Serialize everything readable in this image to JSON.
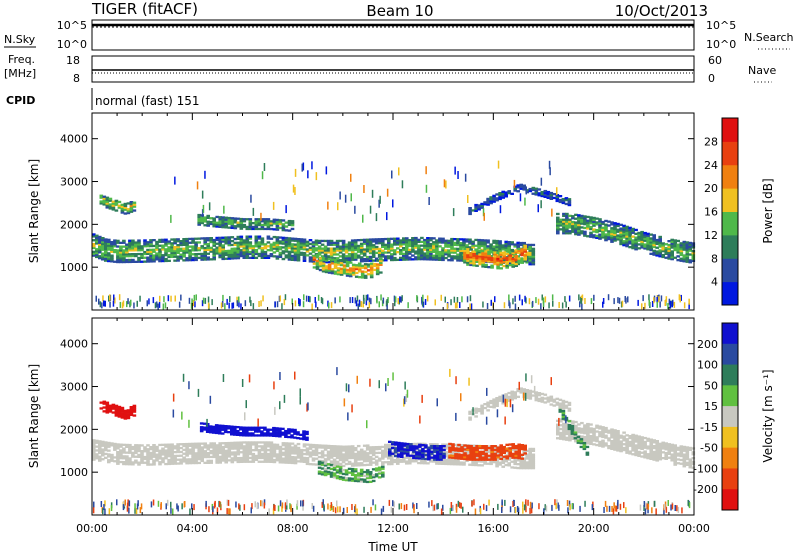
{
  "header": {
    "station": "TIGER (fitACF)",
    "beam": "Beam 10",
    "date": "10/Oct/2013"
  },
  "side_labels": {
    "nsky": "N.Sky",
    "nsearch": "N.Search",
    "freq": "Freq.",
    "freq_unit": "[MHz]",
    "nave": "Nave",
    "cpid": "CPID"
  },
  "cpid_text": "normal (fast) 151",
  "nsky_ticks": [
    "10^5",
    "10^0"
  ],
  "nsearch_ticks": [
    "10^5",
    "10^0"
  ],
  "freq_ticks": [
    "18",
    "8"
  ],
  "nave_ticks": [
    "60",
    "0"
  ],
  "colors": {
    "power": [
      "#0018e0",
      "#2a4aa0",
      "#2e7d5a",
      "#4fb84a",
      "#f0c020",
      "#f08010",
      "#e84010",
      "#e01010"
    ],
    "velocity": [
      "#1010d0",
      "#2a4aa0",
      "#2e7d5a",
      "#60c040",
      "#c8c8c0",
      "#f0c020",
      "#f08010",
      "#e84010",
      "#e01010"
    ]
  },
  "chart_data": [
    {
      "type": "heatmap",
      "name": "power",
      "ylabel": "Slant Range [km]",
      "yticks": [
        "1000",
        "2000",
        "3000",
        "4000"
      ],
      "ylim": [
        0,
        4600
      ],
      "xlim": [
        0,
        24
      ],
      "xtick_labels": [],
      "colorbar_label": "Power [dB]",
      "colorbar_ticks": [
        "4",
        "8",
        "12",
        "16",
        "20",
        "24",
        "28"
      ],
      "colorbar_range": [
        0,
        32
      ],
      "bands": [
        {
          "t": [
            0,
            0.5,
            1,
            2,
            3,
            4,
            5,
            6,
            7,
            8,
            9,
            10,
            11,
            12,
            13,
            14,
            15,
            16,
            17,
            17.6
          ],
          "r": [
            1500,
            1380,
            1350,
            1360,
            1380,
            1400,
            1420,
            1450,
            1450,
            1400,
            1350,
            1350,
            1380,
            1400,
            1420,
            1400,
            1380,
            1350,
            1300,
            1300
          ],
          "w": 500,
          "p": 15
        },
        {
          "t": [
            18.5,
            19,
            20,
            21,
            22,
            23,
            24
          ],
          "r": [
            2000,
            2000,
            1900,
            1750,
            1550,
            1400,
            1300
          ],
          "w": 450,
          "p": 15
        },
        {
          "t": [
            8.8,
            9.2,
            10.2,
            11,
            11.5
          ],
          "r": [
            1150,
            1050,
            950,
            900,
            1050
          ],
          "w": 350,
          "p": 22
        },
        {
          "t": [
            14.8,
            15.5,
            16.2,
            16.8,
            17.3
          ],
          "r": [
            1250,
            1200,
            1150,
            1200,
            1350
          ],
          "w": 400,
          "p": 26
        },
        {
          "t": [
            0.3,
            0.8,
            1.3,
            1.7
          ],
          "r": [
            2550,
            2450,
            2350,
            2450
          ],
          "w": 250,
          "p": 18
        },
        {
          "t": [
            4.2,
            5,
            6,
            7,
            8
          ],
          "r": [
            2100,
            2050,
            2000,
            2000,
            1950
          ],
          "w": 250,
          "p": 14
        },
        {
          "t": [
            15,
            16,
            17,
            18,
            19
          ],
          "r": [
            2300,
            2600,
            2850,
            2700,
            2500
          ],
          "w": 150,
          "p": 8
        }
      ]
    },
    {
      "type": "heatmap",
      "name": "velocity",
      "ylabel": "Slant Range [km]",
      "yticks": [
        "1000",
        "2000",
        "3000",
        "4000"
      ],
      "ylim": [
        0,
        4600
      ],
      "xlim": [
        0,
        24
      ],
      "xlabel": "Time UT",
      "xtick_labels": [
        "00:00",
        "04:00",
        "08:00",
        "12:00",
        "16:00",
        "20:00",
        "00:00"
      ],
      "colorbar_label": "Velocity [m s⁻¹]",
      "colorbar_ticks": [
        "200",
        "100",
        "50",
        "15",
        "-15",
        "-50",
        "-100",
        "-200"
      ],
      "bands": [
        {
          "t": [
            0,
            1,
            2,
            3,
            4,
            5,
            6,
            7,
            8,
            9,
            10,
            11,
            12,
            13,
            14,
            15,
            16,
            17,
            17.6
          ],
          "r": [
            1500,
            1400,
            1380,
            1400,
            1420,
            1430,
            1450,
            1450,
            1420,
            1380,
            1350,
            1380,
            1400,
            1420,
            1400,
            1380,
            1350,
            1300,
            1300
          ],
          "w": 450,
          "v": 0
        },
        {
          "t": [
            18.5,
            19,
            20,
            21,
            22,
            23,
            24
          ],
          "r": [
            2000,
            1950,
            1850,
            1700,
            1550,
            1400,
            1300
          ],
          "w": 450,
          "v": 0
        },
        {
          "t": [
            0.3,
            0.8,
            1.3,
            1.7
          ],
          "r": [
            2550,
            2450,
            2350,
            2450
          ],
          "w": 250,
          "v": -180
        },
        {
          "t": [
            4.3,
            5,
            6,
            7,
            8,
            8.5
          ],
          "r": [
            2050,
            2000,
            1950,
            1950,
            1900,
            1850
          ],
          "w": 220,
          "v": 180
        },
        {
          "t": [
            11.8,
            12.5,
            13,
            13.5,
            14
          ],
          "r": [
            1550,
            1500,
            1480,
            1450,
            1450
          ],
          "w": 350,
          "v": 160
        },
        {
          "t": [
            14.2,
            15,
            16,
            16.8,
            17.3
          ],
          "r": [
            1500,
            1450,
            1450,
            1500,
            1450
          ],
          "w": 350,
          "v": -90
        },
        {
          "t": [
            9,
            10,
            11,
            11.6
          ],
          "r": [
            1100,
            950,
            900,
            1000
          ],
          "w": 300,
          "v": 30
        },
        {
          "t": [
            18.6,
            19,
            19.4,
            19.8
          ],
          "r": [
            2450,
            2050,
            1700,
            1400
          ],
          "w": 200,
          "v": 40
        },
        {
          "t": [
            15,
            16,
            17,
            18,
            19
          ],
          "r": [
            2300,
            2600,
            2850,
            2700,
            2500
          ],
          "w": 180,
          "v": 0
        }
      ]
    }
  ]
}
